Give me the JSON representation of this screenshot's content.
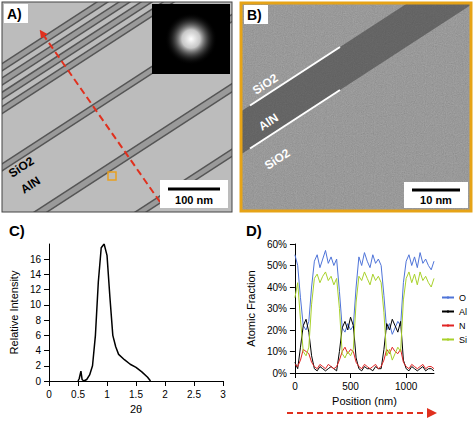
{
  "images": [
    {
      "panel": "A)",
      "labels": [
        "SiO2",
        "AlN"
      ],
      "scale_bar": "100 nm"
    },
    {
      "panel": "B)",
      "labels": [
        "SiO2",
        "AlN",
        "SiO2"
      ],
      "scale_bar": "10 nm"
    }
  ],
  "chart_data": [
    {
      "panel": "C)",
      "type": "line",
      "x_label": "2θ",
      "y_label": "Relative Intensity",
      "x": [
        0.5,
        0.52,
        0.55,
        0.57,
        0.6,
        0.65,
        0.7,
        0.75,
        0.8,
        0.85,
        0.9,
        0.95,
        1.0,
        1.05,
        1.1,
        1.15,
        1.2,
        1.3,
        1.4,
        1.5,
        1.6,
        1.7,
        1.75
      ],
      "values": [
        0,
        0.3,
        1.3,
        0.2,
        0,
        0.2,
        0.8,
        2,
        6,
        13,
        17.5,
        18,
        16.5,
        11,
        6,
        4.5,
        3.5,
        2.8,
        2.2,
        1.8,
        1.2,
        0.5,
        0
      ],
      "color": "#000000",
      "xlim": [
        0,
        3
      ],
      "xticks": [
        0,
        0.5,
        1,
        1.5,
        2,
        2.5,
        3
      ],
      "ylim": [
        0,
        18
      ],
      "yticks": [
        0,
        2,
        4,
        6,
        8,
        10,
        12,
        14,
        16
      ],
      "grid": false
    },
    {
      "panel": "D)",
      "type": "line",
      "x_label": "Position (nm)",
      "y_label": "Atomic Fraction",
      "x": [
        0,
        25,
        50,
        75,
        100,
        125,
        150,
        175,
        200,
        225,
        250,
        275,
        300,
        325,
        350,
        375,
        400,
        425,
        450,
        475,
        500,
        525,
        550,
        575,
        600,
        625,
        650,
        675,
        700,
        725,
        750,
        775,
        800,
        825,
        850,
        875,
        900,
        925,
        950,
        975,
        1000,
        1025,
        1050,
        1075,
        1100,
        1125,
        1150,
        1175,
        1200,
        1225,
        1250
      ],
      "series": [
        {
          "name": "O",
          "color": "#4f74d8",
          "values": [
            55,
            50,
            35,
            22,
            20,
            24,
            40,
            52,
            55,
            49,
            53,
            57,
            51,
            54,
            50,
            53,
            38,
            21,
            19,
            23,
            20,
            22,
            40,
            54,
            50,
            56,
            52,
            49,
            55,
            51,
            53,
            50,
            36,
            20,
            23,
            18,
            21,
            24,
            22,
            42,
            52,
            55,
            50,
            54,
            49,
            56,
            51,
            53,
            50,
            48,
            52
          ]
        },
        {
          "name": "Al",
          "color": "#000000",
          "values": [
            5,
            2,
            12,
            22,
            25,
            19,
            8,
            2,
            1,
            3,
            2,
            1,
            2,
            3,
            2,
            1,
            10,
            21,
            24,
            20,
            26,
            22,
            7,
            2,
            1,
            3,
            2,
            2,
            1,
            3,
            2,
            2,
            11,
            23,
            20,
            25,
            22,
            19,
            24,
            6,
            2,
            1,
            3,
            2,
            1,
            2,
            3,
            1,
            2,
            2,
            1
          ]
        },
        {
          "name": "N",
          "color": "#e02424",
          "values": [
            4,
            3,
            6,
            11,
            10,
            9,
            5,
            3,
            2,
            4,
            3,
            2,
            4,
            3,
            2,
            3,
            6,
            10,
            12,
            9,
            11,
            10,
            5,
            3,
            2,
            4,
            3,
            2,
            3,
            4,
            2,
            3,
            6,
            11,
            9,
            12,
            10,
            9,
            11,
            5,
            3,
            2,
            4,
            3,
            2,
            3,
            4,
            2,
            3,
            3,
            2
          ]
        },
        {
          "name": "Si",
          "color": "#a8d12a",
          "values": [
            35,
            42,
            25,
            10,
            8,
            12,
            32,
            44,
            46,
            42,
            45,
            47,
            43,
            45,
            41,
            44,
            30,
            9,
            7,
            10,
            8,
            11,
            33,
            45,
            43,
            47,
            44,
            41,
            46,
            43,
            45,
            42,
            28,
            8,
            11,
            6,
            9,
            12,
            10,
            34,
            44,
            47,
            42,
            46,
            41,
            47,
            43,
            45,
            42,
            40,
            44
          ]
        }
      ],
      "xlim": [
        0,
        1250
      ],
      "xticks": [
        0,
        500,
        1000
      ],
      "ylim": [
        0,
        60
      ],
      "yticks": [
        {
          "value": 0,
          "label": "0%"
        },
        {
          "value": 10,
          "label": "10%"
        },
        {
          "value": 20,
          "label": "20%"
        },
        {
          "value": 30,
          "label": "30%"
        },
        {
          "value": 40,
          "label": "40%"
        },
        {
          "value": 50,
          "label": "50%"
        },
        {
          "value": 60,
          "label": "60%"
        }
      ],
      "grid": false,
      "legend": "right"
    }
  ]
}
